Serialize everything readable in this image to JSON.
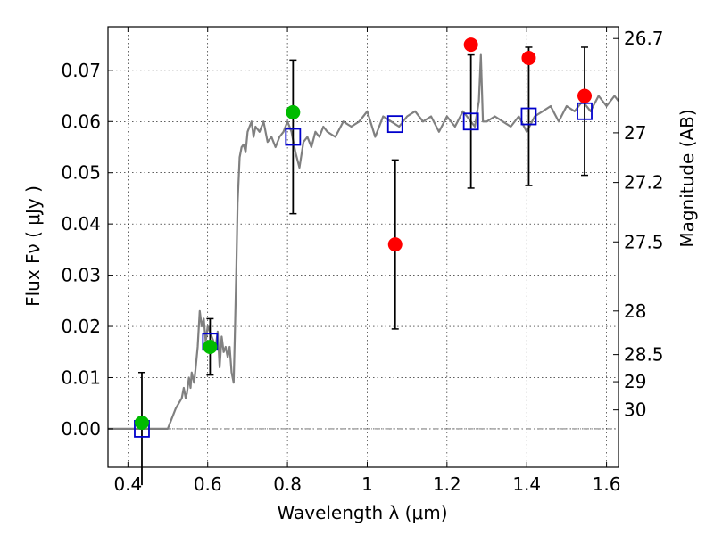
{
  "chart_data": {
    "type": "scatter",
    "xlabel": "Wavelength  λ (μm)",
    "ylabel": "Flux  Fν  ( μJy )",
    "y2label": "Magnitude (AB)",
    "xlim": [
      0.35,
      1.63
    ],
    "ylim": [
      -0.0075,
      0.0785
    ],
    "xticks": [
      0.4,
      0.6,
      0.8,
      1.0,
      1.2,
      1.4,
      1.6
    ],
    "xtick_labels": [
      "0.4",
      "0.6",
      "0.8",
      "1",
      "1.2",
      "1.4",
      "1.6"
    ],
    "yticks": [
      0.0,
      0.01,
      0.02,
      0.03,
      0.04,
      0.05,
      0.06,
      0.07
    ],
    "ytick_labels": [
      "0.00",
      "0.01",
      "0.02",
      "0.03",
      "0.04",
      "0.05",
      "0.06",
      "0.07"
    ],
    "mag_ticks": [
      {
        "label": "26.7",
        "flux": 0.0762
      },
      {
        "label": "27",
        "flux": 0.0578
      },
      {
        "label": "27.2",
        "flux": 0.0481
      },
      {
        "label": "27.5",
        "flux": 0.0365
      },
      {
        "label": "28",
        "flux": 0.023
      },
      {
        "label": "28.5",
        "flux": 0.0145
      },
      {
        "label": "29",
        "flux": 0.0092
      },
      {
        "label": "30",
        "flux": 0.0037
      }
    ],
    "grid": true,
    "model_sed": {
      "name": "model SED",
      "color": "#808080",
      "x": [
        0.35,
        0.5,
        0.52,
        0.535,
        0.54,
        0.545,
        0.548,
        0.553,
        0.557,
        0.56,
        0.566,
        0.57,
        0.575,
        0.58,
        0.585,
        0.59,
        0.595,
        0.6,
        0.605,
        0.61,
        0.62,
        0.625,
        0.63,
        0.635,
        0.64,
        0.645,
        0.65,
        0.655,
        0.66,
        0.665,
        0.668,
        0.672,
        0.675,
        0.68,
        0.685,
        0.69,
        0.695,
        0.7,
        0.705,
        0.71,
        0.715,
        0.72,
        0.73,
        0.74,
        0.75,
        0.76,
        0.77,
        0.78,
        0.79,
        0.8,
        0.81,
        0.82,
        0.83,
        0.84,
        0.85,
        0.86,
        0.87,
        0.88,
        0.89,
        0.9,
        0.92,
        0.94,
        0.96,
        0.98,
        1.0,
        1.02,
        1.04,
        1.06,
        1.08,
        1.1,
        1.12,
        1.14,
        1.16,
        1.18,
        1.2,
        1.22,
        1.24,
        1.26,
        1.27,
        1.28,
        1.285,
        1.29,
        1.3,
        1.32,
        1.34,
        1.36,
        1.38,
        1.4,
        1.42,
        1.44,
        1.46,
        1.48,
        1.5,
        1.52,
        1.54,
        1.56,
        1.58,
        1.6,
        1.62,
        1.63
      ],
      "y": [
        0.0,
        0.0,
        0.004,
        0.006,
        0.008,
        0.006,
        0.007,
        0.01,
        0.008,
        0.011,
        0.009,
        0.012,
        0.016,
        0.023,
        0.02,
        0.0215,
        0.017,
        0.02,
        0.019,
        0.018,
        0.016,
        0.019,
        0.012,
        0.018,
        0.015,
        0.016,
        0.014,
        0.016,
        0.011,
        0.009,
        0.018,
        0.032,
        0.044,
        0.053,
        0.055,
        0.0555,
        0.054,
        0.058,
        0.059,
        0.06,
        0.057,
        0.059,
        0.058,
        0.06,
        0.056,
        0.057,
        0.055,
        0.057,
        0.058,
        0.06,
        0.058,
        0.054,
        0.051,
        0.056,
        0.057,
        0.055,
        0.058,
        0.057,
        0.059,
        0.058,
        0.057,
        0.06,
        0.059,
        0.06,
        0.062,
        0.057,
        0.061,
        0.06,
        0.059,
        0.061,
        0.062,
        0.06,
        0.061,
        0.058,
        0.061,
        0.059,
        0.062,
        0.06,
        0.059,
        0.064,
        0.073,
        0.06,
        0.06,
        0.061,
        0.06,
        0.059,
        0.061,
        0.058,
        0.061,
        0.062,
        0.063,
        0.06,
        0.063,
        0.062,
        0.064,
        0.062,
        0.065,
        0.063,
        0.065,
        0.064
      ]
    },
    "observed_points": [
      {
        "x": 0.435,
        "y": 0.0012,
        "yerr": 0.01,
        "color": "#00bb00"
      },
      {
        "x": 0.606,
        "y": 0.016,
        "yerr": 0.0055,
        "color": "#00bb00"
      },
      {
        "x": 0.814,
        "y": 0.0618,
        "yerr": 0.0,
        "color": "#00bb00"
      },
      {
        "x": 1.07,
        "y": 0.036,
        "yerr": 0.0165,
        "color": "#ff0000"
      },
      {
        "x": 1.26,
        "y": 0.075,
        "yerr": 0.0,
        "color": "#ff0000"
      },
      {
        "x": 1.405,
        "y": 0.0724,
        "yerr": 0.0,
        "color": "#ff0000"
      },
      {
        "x": 1.545,
        "y": 0.065,
        "yerr": 0.0,
        "color": "#ff0000"
      }
    ],
    "model_points": [
      {
        "x": 0.435,
        "y": 0.0,
        "yerr": 0.011
      },
      {
        "x": 0.606,
        "y": 0.017,
        "yerr": 0.0045
      },
      {
        "x": 0.814,
        "y": 0.057,
        "yerr": 0.015
      },
      {
        "x": 1.07,
        "y": 0.0595,
        "yerr": 0.0
      },
      {
        "x": 1.26,
        "y": 0.06,
        "yerr": 0.013
      },
      {
        "x": 1.405,
        "y": 0.061,
        "yerr": 0.0135
      },
      {
        "x": 1.545,
        "y": 0.062,
        "yerr": 0.0125
      }
    ],
    "model_point_color": "#0000cc"
  }
}
